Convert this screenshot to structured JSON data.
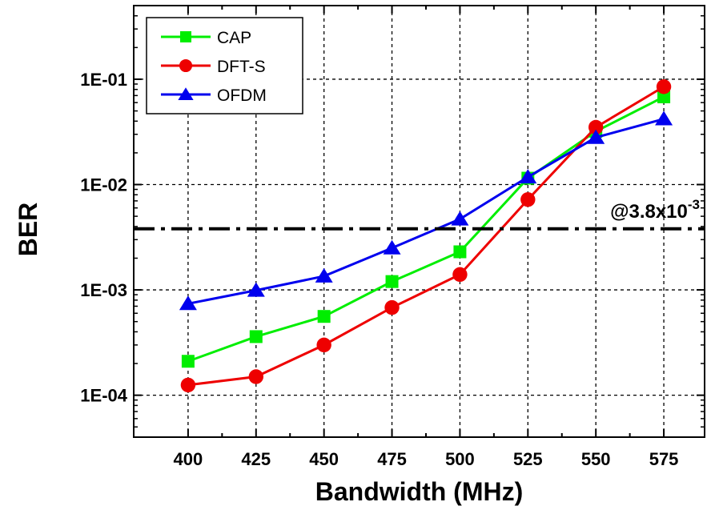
{
  "chart_data": {
    "type": "line",
    "xlabel": "Bandwidth (MHz)",
    "ylabel": "BER",
    "x": [
      400,
      425,
      450,
      475,
      500,
      525,
      550,
      575
    ],
    "xlim": [
      380,
      590
    ],
    "ylim": [
      4e-05,
      0.5
    ],
    "yscale": "log",
    "x_ticks": [
      400,
      425,
      450,
      475,
      500,
      525,
      550,
      575
    ],
    "y_ticks": [
      {
        "value": 0.1,
        "label": "1E-01"
      },
      {
        "value": 0.01,
        "label": "1E-02"
      },
      {
        "value": 0.001,
        "label": "1E-03"
      },
      {
        "value": 0.0001,
        "label": "1E-04"
      }
    ],
    "grid": true,
    "legend_position": "top-left",
    "series": [
      {
        "name": "CAP",
        "color": "#00ee00",
        "marker": "square",
        "values": [
          0.00021,
          0.00036,
          0.00056,
          0.0012,
          0.0023,
          0.0115,
          0.032,
          0.068
        ]
      },
      {
        "name": "DFT-S",
        "color": "#ee0000",
        "marker": "circle",
        "values": [
          0.000125,
          0.00015,
          0.0003,
          0.00068,
          0.0014,
          0.0072,
          0.035,
          0.085
        ]
      },
      {
        "name": "OFDM",
        "color": "#0000ee",
        "marker": "triangle",
        "values": [
          0.00074,
          0.00099,
          0.00135,
          0.0025,
          0.0047,
          0.0118,
          0.028,
          0.042
        ]
      }
    ],
    "threshold": {
      "value": 0.0038,
      "label_prefix": "@3.8x10",
      "label_exponent": "-3"
    }
  }
}
